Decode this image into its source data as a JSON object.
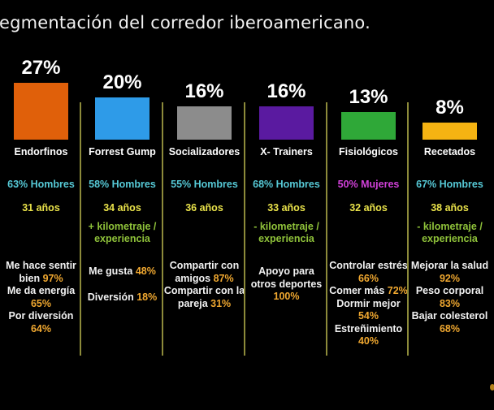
{
  "title": "egmentación del corredor iberoamericano.",
  "chart_data": {
    "type": "bar",
    "title": "egmentación del corredor iberoamericano.",
    "categories": [
      "Endorfinos",
      "Forrest Gump",
      "Socializadores",
      "X- Trainers",
      "Fisiológicos",
      "Recetados"
    ],
    "values": [
      27,
      20,
      16,
      16,
      13,
      8
    ],
    "value_labels": [
      "27%",
      "20%",
      "16%",
      "16%",
      "13%",
      "8%"
    ],
    "colors": [
      "#e0600a",
      "#2e9be8",
      "#8c8c8c",
      "#5a1aa0",
      "#2fa838",
      "#f5b312"
    ],
    "ylim": [
      0,
      27
    ],
    "xlabel": "",
    "ylabel": "",
    "grid": false,
    "legend": "none"
  },
  "segments": [
    {
      "name": "Endorfinos",
      "pct": "27%",
      "gender": "63% Hombres",
      "gender_color": "#56c9d6",
      "age": "31 años",
      "mileage": "",
      "motives": [
        {
          "text": "Me hace sentir bien",
          "value": "97%"
        },
        {
          "text": "Me da energía",
          "value": "65%"
        },
        {
          "text": "Por diversión",
          "value": "64%"
        }
      ]
    },
    {
      "name": "Forrest Gump",
      "pct": "20%",
      "gender": "58% Hombres",
      "gender_color": "#56c9d6",
      "age": "34 años",
      "mileage": "+ kilometraje / experiencia",
      "motives": [
        {
          "text": "Me gusta",
          "value": "48%"
        },
        {
          "text": "Diversión",
          "value": "18%"
        }
      ]
    },
    {
      "name": "Socializadores",
      "pct": "16%",
      "gender": "55% Hombres",
      "gender_color": "#56c9d6",
      "age": "36 años",
      "mileage": "",
      "motives": [
        {
          "text": "Compartir con amigos",
          "value": "87%"
        },
        {
          "text": "Compartir con la pareja",
          "value": "31%"
        }
      ]
    },
    {
      "name": "X- Trainers",
      "pct": "16%",
      "gender": "68% Hombres",
      "gender_color": "#56c9d6",
      "age": "33 años",
      "mileage": "- kilometraje / experiencia",
      "motives": [
        {
          "text": "Apoyo para otros deportes",
          "value": "100%"
        }
      ]
    },
    {
      "name": "Fisiológicos",
      "pct": "13%",
      "gender": "50% Mujeres",
      "gender_color": "#d040d8",
      "age": "32 años",
      "mileage": "",
      "motives": [
        {
          "text": "Controlar estrés",
          "value": "66%"
        },
        {
          "text": "Comer más",
          "value": "72%"
        },
        {
          "text": "Dormir mejor",
          "value": "54%"
        },
        {
          "text": "Estreñimiento",
          "value": "40%"
        }
      ]
    },
    {
      "name": "Recetados",
      "pct": "8%",
      "gender": "67% Hombres",
      "gender_color": "#56c9d6",
      "age": "38 años",
      "mileage": "- kilometraje / experiencia",
      "motives": [
        {
          "text": "Mejorar la salud",
          "value": "92%"
        },
        {
          "text": "Peso corporal",
          "value": "83%"
        },
        {
          "text": "Bajar colesterol",
          "value": "68%"
        }
      ]
    }
  ]
}
